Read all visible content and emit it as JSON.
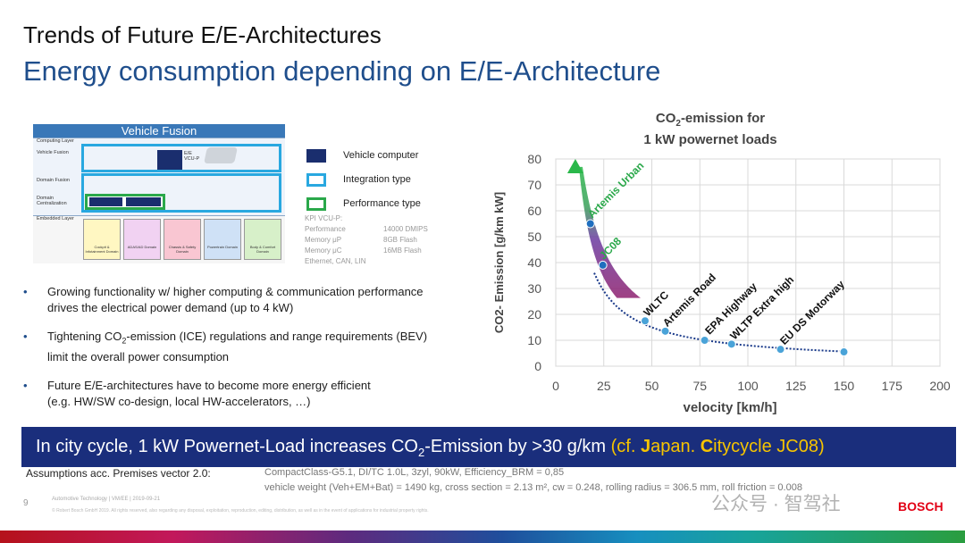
{
  "slide": {
    "title": "Trends of Future E/E-Architectures",
    "subtitle": "Energy consumption depending on E/E-Architecture"
  },
  "diagram": {
    "header": "Vehicle Fusion",
    "layers": [
      "Computing Layer",
      "Vehicle Fusion",
      "Domain Fusion",
      "Domain Centralization",
      "Embedded Layer"
    ],
    "vcu_label": "E/E VCU-P",
    "domains": [
      "Cockpit & Infotainment Domain",
      "ADAS/AD Domain",
      "Chassis & Safety Domain",
      "Powertrain Domain",
      "Body & Comfort Domain"
    ]
  },
  "legend": [
    {
      "label": "Vehicle computer",
      "color": "#1a2e6e",
      "style": "filled"
    },
    {
      "label": "Integration type",
      "color": "#29a8e0",
      "style": "outline"
    },
    {
      "label": "Performance type",
      "color": "#2aa84a",
      "style": "outline"
    }
  ],
  "kpi": {
    "title": "KPI VCU-P:",
    "rows": [
      {
        "k": "Performance",
        "v": "14000 DMIPS"
      },
      {
        "k": "Memory μP",
        "v": "8GB Flash"
      },
      {
        "k": "Memory μC",
        "v": "16MB Flash"
      }
    ],
    "extra": "Ethernet, CAN, LIN"
  },
  "bullets": [
    {
      "l1": "Growing functionality w/ higher computing & communication performance",
      "l2": "drives the electrical power demand (up to 4 kW)"
    },
    {
      "l1a": "Tightening CO",
      "l1sub": "2",
      "l1b": "-emission (ICE) regulations and range requirements (BEV)",
      "l2": "limit the overall power consumption"
    },
    {
      "l1": "Future E/E-architectures have to become more energy efficient",
      "l2": "(e.g. HW/SW co-design, local HW-accelerators, …)"
    }
  ],
  "bullet_symbol": "•",
  "chart_data": {
    "type": "scatter",
    "title_a": "CO",
    "title_sub": "2",
    "title_b": "-emission for",
    "title_line2": "1 kW powernet loads",
    "xlabel": "velocity [km/h]",
    "ylabel": "CO2- Emission  [g/km  kW]",
    "xlim": [
      0,
      200
    ],
    "ylim": [
      0,
      80
    ],
    "xticks": [
      0,
      25,
      50,
      75,
      100,
      125,
      150,
      175,
      200
    ],
    "yticks": [
      0,
      10,
      20,
      30,
      40,
      50,
      60,
      70,
      80
    ],
    "grid": true,
    "points": [
      {
        "x": 18,
        "y": 55,
        "color": "#1f6fbf"
      },
      {
        "x": 24.5,
        "y": 39,
        "color": "#1f6fbf"
      },
      {
        "x": 46.5,
        "y": 17.5,
        "color": "#4aa3d8"
      },
      {
        "x": 57,
        "y": 13.5,
        "color": "#4aa3d8"
      },
      {
        "x": 77.5,
        "y": 10,
        "color": "#4aa3d8"
      },
      {
        "x": 91.5,
        "y": 8.5,
        "color": "#4aa3d8"
      },
      {
        "x": 117,
        "y": 6.5,
        "color": "#4aa3d8"
      },
      {
        "x": 150,
        "y": 5.5,
        "color": "#4aa3d8"
      }
    ],
    "annotations": [
      {
        "text": "Artemis Urban",
        "color": "#2aa84a"
      },
      {
        "text": "JC08",
        "color": "#2aa84a"
      },
      {
        "text": "WLTC",
        "color": "#111111"
      },
      {
        "text": "Artemis Road",
        "color": "#111111"
      },
      {
        "text": "EPA Highway",
        "color": "#111111"
      },
      {
        "text": "WLTP Extra high",
        "color": "#111111"
      },
      {
        "text": "EU DS Motorway",
        "color": "#111111"
      }
    ]
  },
  "banner": {
    "a": "In city cycle, 1 kW Powernet-Load increases CO",
    "sub": "2",
    "b": "-Emission by >30 g/km ",
    "c1": "(cf. ",
    "j": "J",
    "c2": "apan. ",
    "cc": "C",
    "c3": "itycycle JC08)"
  },
  "assumptions": {
    "label": "Assumptions acc. Premises vector 2.0:",
    "line1": "CompactClass-G5.1, DI/TC 1.0L, 3zyl, 90kW, Efficiency_BRM = 0,85",
    "line2": "vehicle weight (Veh+EM+Bat) = 1490 kg, cross section = 2.13 m², cw = 0.248, rolling radius = 306.5 mm, roll friction = 0.008"
  },
  "footer": {
    "page": "9",
    "meta": "Automotive Technology | VM/EE | 2019-09-21",
    "copyright": "© Robert Bosch GmbH 2019. All rights reserved, also regarding any disposal, exploitation, reproduction, editing, distribution, as well as in the event of applications for industrial property rights.",
    "watermark": "公众号 · 智驾社",
    "brand": "BOSCH"
  }
}
